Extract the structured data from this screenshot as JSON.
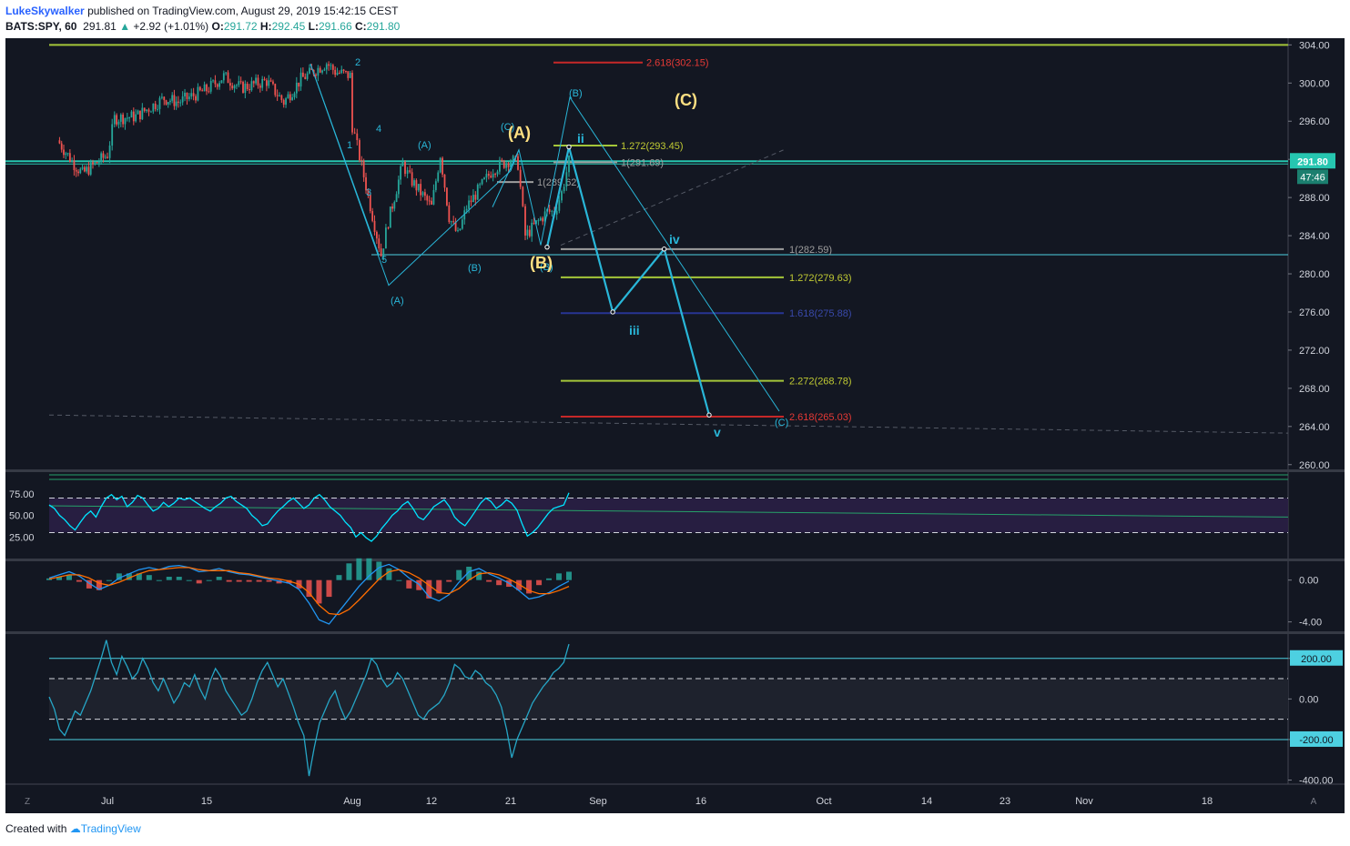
{
  "header": {
    "author": "LukeSkywalker",
    "published": "published on TradingView.com, August 29, 2019 15:42:15 CEST",
    "symbol": "BATS:SPY, 60",
    "last": "291.81",
    "change_arrow": "▲",
    "change": "+2.92 (+1.01%)",
    "open_label": "O:",
    "open": "291.72",
    "high_label": "H:",
    "high": "292.45",
    "low_label": "L:",
    "low": "291.66",
    "close_label": "C:",
    "close": "291.80"
  },
  "footer": {
    "created_with": "Created with",
    "brand": "TradingView"
  },
  "badges": {
    "price": "291.80",
    "countdown": "47:46",
    "cci_level": "200.00",
    "cci_neg_level": "-200.00"
  },
  "corner": {
    "left": "Z",
    "right": "A"
  },
  "colors": {
    "background": "#131722",
    "bull": "#26a69a",
    "bear": "#ef5350",
    "wave_line": "#29b6d8",
    "fib_green": "#a4c639",
    "fib_red": "#c62828",
    "fib_gray": "#9e9e9e",
    "fib_blue": "#283593",
    "wave_label_yellow": "#ffe082",
    "horizontal_teal": "#26c6b0"
  },
  "chart_data": [
    {
      "type": "candlestick",
      "title": "BATS:SPY, 60",
      "y_ticks": [
        "304.00",
        "300.00",
        "296.00",
        "292.00",
        "288.00",
        "284.00",
        "280.00",
        "276.00",
        "272.00",
        "268.00",
        "264.00",
        "260.00"
      ],
      "ylim": [
        259.5,
        304.7
      ],
      "x_ticks": [
        "Jul",
        "15",
        "Aug",
        "12",
        "21",
        "Sep",
        "16",
        "Oct",
        "14",
        "23",
        "Nov",
        "18"
      ],
      "price_path": [
        [
          "Jun 25",
          294.0
        ],
        [
          "Jun 27",
          291.5
        ],
        [
          "Jun 28",
          290.5
        ],
        [
          "Jul 1",
          292.5
        ],
        [
          "Jul 2",
          296.3
        ],
        [
          "Jul 5",
          296.5
        ],
        [
          "Jul 9",
          298.4
        ],
        [
          "Jul 11",
          298.0
        ],
        [
          "Jul 15",
          299.3
        ],
        [
          "Jul 17",
          300.7
        ],
        [
          "Jul 19",
          299.5
        ],
        [
          "Jul 22",
          300.2
        ],
        [
          "Jul 24",
          298.0
        ],
        [
          "Jul 26",
          300.4
        ],
        [
          "Jul 29",
          302.1
        ],
        [
          "Jul 30",
          301.2
        ],
        [
          "Aug 1",
          300.7
        ],
        [
          "Aug 1",
          295.5
        ],
        [
          "Aug 2",
          292.3
        ],
        [
          "Aug 5",
          282.0
        ],
        [
          "Aug 6",
          285.5
        ],
        [
          "Aug 8",
          291.5
        ],
        [
          "Aug 9",
          290.0
        ],
        [
          "Aug 12",
          287.0
        ],
        [
          "Aug 13",
          292.5
        ],
        [
          "Aug 14",
          286.0
        ],
        [
          "Aug 15",
          284.0
        ],
        [
          "Aug 16",
          287.0
        ],
        [
          "Aug 19",
          291.0
        ],
        [
          "Aug 21",
          292.0
        ],
        [
          "Aug 22",
          291.5
        ],
        [
          "Aug 23",
          284.0
        ],
        [
          "Aug 26",
          286.5
        ],
        [
          "Aug 27",
          286.5
        ],
        [
          "Aug 28",
          288.5
        ],
        [
          "Aug 29",
          291.8
        ]
      ],
      "horizontal_lines": [
        304.0,
        291.8,
        282.0
      ],
      "fib_levels": [
        {
          "label": "2.618(302.15)",
          "value": 302.15,
          "color": "red"
        },
        {
          "label": "1.272(293.45)",
          "value": 293.45,
          "color": "green"
        },
        {
          "label": "1(291.69)",
          "value": 291.69,
          "color": "gray"
        },
        {
          "label": "1(289.62)",
          "value": 289.62,
          "color": "gray"
        },
        {
          "label": "1(282.59)",
          "value": 282.59,
          "color": "gray"
        },
        {
          "label": "1.272(279.63)",
          "value": 279.63,
          "color": "green"
        },
        {
          "label": "1.618(275.88)",
          "value": 275.88,
          "color": "blue"
        },
        {
          "label": "2.272(268.78)",
          "value": 268.78,
          "color": "green"
        },
        {
          "label": "2.618(265.03)",
          "value": 265.03,
          "color": "red"
        }
      ],
      "projection_path": [
        [
          "Aug 26",
          282.8
        ],
        [
          "Aug 29",
          293.3
        ],
        [
          "Sep 4",
          276.0
        ],
        [
          "Sep 11",
          282.6
        ],
        [
          "Sep 17",
          265.2
        ]
      ],
      "projection_labels": [
        "ii",
        "iii",
        "iv",
        "v"
      ],
      "wave_labels": {
        "yellow": [
          "(A)",
          "(B)",
          "(C)"
        ],
        "cyan": [
          "2",
          "1",
          "4",
          "3",
          "5",
          "(A)",
          "(A)",
          "(B)",
          "(C)",
          "(B)",
          "(B)",
          "(C)"
        ]
      }
    },
    {
      "type": "line",
      "name": "RSI",
      "y_ticks": [
        "75.00",
        "50.00",
        "25.00"
      ],
      "levels": [
        70,
        30
      ],
      "values": [
        62,
        58,
        50,
        45,
        38,
        33,
        42,
        50,
        55,
        48,
        60,
        70,
        74,
        68,
        72,
        60,
        65,
        73,
        70,
        62,
        55,
        58,
        65,
        60,
        64,
        70,
        68,
        70,
        66,
        62,
        58,
        55,
        60,
        64,
        70,
        72,
        66,
        62,
        58,
        50,
        45,
        38,
        40,
        48,
        55,
        60,
        66,
        70,
        64,
        58,
        62,
        70,
        74,
        68,
        60,
        55,
        50,
        42,
        36,
        25,
        30,
        24,
        20,
        26,
        35,
        42,
        50,
        55,
        62,
        66,
        58,
        48,
        45,
        52,
        60,
        64,
        68,
        60,
        48,
        42,
        38,
        46,
        55,
        64,
        70,
        66,
        58,
        62,
        68,
        64,
        56,
        40,
        26,
        30,
        36,
        44,
        52,
        58,
        60,
        62,
        76
      ]
    },
    {
      "type": "line",
      "name": "MACD",
      "y_ticks": [
        "0.00",
        "-4.00"
      ],
      "macd": [
        0.2,
        0.5,
        0.8,
        0.4,
        -0.3,
        -0.9,
        -0.5,
        0.2,
        0.6,
        1.0,
        1.2,
        1.0,
        1.3,
        1.4,
        1.2,
        0.8,
        0.9,
        1.1,
        0.8,
        0.6,
        0.5,
        0.3,
        0.1,
        -0.1,
        -0.3,
        -0.9,
        -2.2,
        -3.8,
        -4.2,
        -3.0,
        -1.8,
        -0.6,
        0.4,
        1.2,
        1.5,
        1.0,
        0.2,
        -0.4,
        -1.6,
        -2.0,
        -1.4,
        -0.2,
        0.8,
        1.1,
        0.6,
        0.2,
        -0.3,
        -1.0,
        -1.8,
        -1.6,
        -1.2,
        -0.6,
        -0.1
      ],
      "signal": [
        0.1,
        0.3,
        0.5,
        0.5,
        0.2,
        -0.3,
        -0.5,
        -0.2,
        0.2,
        0.6,
        0.9,
        1.0,
        1.1,
        1.2,
        1.2,
        1.0,
        0.9,
        0.9,
        0.9,
        0.7,
        0.6,
        0.4,
        0.2,
        0.1,
        -0.1,
        -0.4,
        -1.2,
        -2.4,
        -3.2,
        -3.3,
        -2.8,
        -1.9,
        -0.9,
        0.1,
        0.8,
        1.0,
        0.7,
        0.2,
        -0.5,
        -1.2,
        -1.3,
        -0.8,
        0.0,
        0.6,
        0.7,
        0.5,
        0.1,
        -0.4,
        -1.0,
        -1.3,
        -1.3,
        -1.0,
        -0.6
      ]
    },
    {
      "type": "line",
      "name": "CCI",
      "y_ticks": [
        "200.00",
        "0.00",
        "-200.00",
        "-400.00"
      ],
      "levels": [
        200,
        100,
        -100,
        -200
      ],
      "values": [
        10,
        -50,
        -150,
        -180,
        -120,
        -60,
        -80,
        -20,
        40,
        120,
        200,
        290,
        180,
        120,
        210,
        160,
        100,
        130,
        200,
        150,
        80,
        40,
        100,
        40,
        -20,
        20,
        80,
        60,
        120,
        50,
        0,
        90,
        150,
        110,
        40,
        0,
        -40,
        -80,
        -60,
        0,
        80,
        140,
        180,
        120,
        60,
        100,
        30,
        -40,
        -120,
        -180,
        -380,
        -240,
        -120,
        -60,
        0,
        40,
        -40,
        -100,
        -60,
        0,
        60,
        120,
        200,
        170,
        100,
        60,
        80,
        130,
        100,
        40,
        -20,
        -80,
        -100,
        -60,
        -40,
        -20,
        20,
        80,
        170,
        150,
        110,
        100,
        140,
        120,
        80,
        60,
        20,
        -40,
        -150,
        -290,
        -200,
        -140,
        -80,
        -20,
        20,
        60,
        90,
        130,
        150,
        180,
        270
      ]
    }
  ]
}
